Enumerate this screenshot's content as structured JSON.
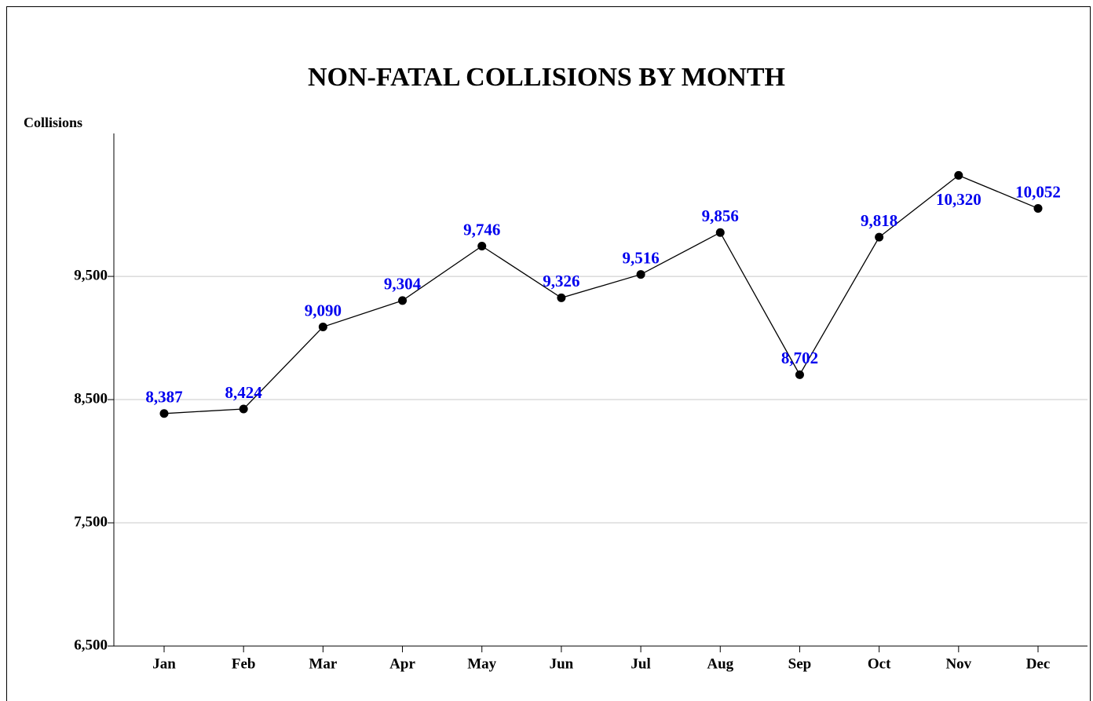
{
  "chart_data": {
    "type": "line",
    "title": "NON-FATAL COLLISIONS BY MONTH",
    "y_label": "Collisions",
    "categories": [
      "Jan",
      "Feb",
      "Mar",
      "Apr",
      "May",
      "Jun",
      "Jul",
      "Aug",
      "Sep",
      "Oct",
      "Nov",
      "Dec"
    ],
    "series": [
      {
        "name": "Collisions",
        "color": "#000000",
        "values": [
          8387,
          8424,
          9090,
          9304,
          9746,
          9326,
          9516,
          9856,
          8702,
          9818,
          10320,
          10052
        ],
        "value_labels": [
          "8,387",
          "8,424",
          "9,090",
          "9,304",
          "9,746",
          "9,326",
          "9,516",
          "9,856",
          "8,702",
          "9,818",
          "10,320",
          "10,052"
        ]
      }
    ],
    "label_color": "#0000ee",
    "ylim": [
      6500,
      10660
    ],
    "yticks": [
      {
        "value": 6500,
        "label": "6,500"
      },
      {
        "value": 7500,
        "label": "7,500"
      },
      {
        "value": 8500,
        "label": "8,500"
      },
      {
        "value": 9500,
        "label": "9,500"
      }
    ],
    "grid": true
  }
}
